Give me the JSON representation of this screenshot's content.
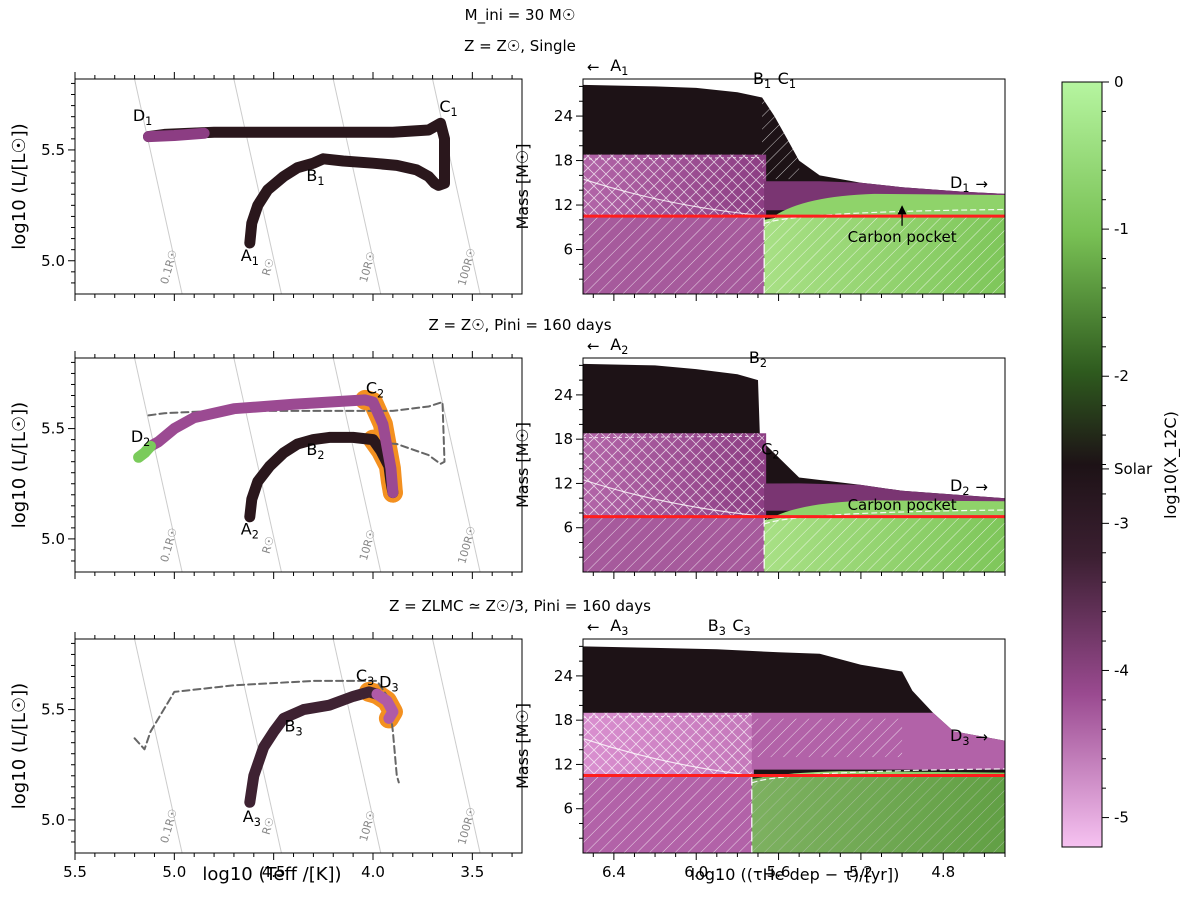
{
  "figure_title": "M_ini = 30 M☉",
  "colorbar": {
    "label": "log10(X_12C)",
    "range": [
      -5.2,
      0
    ],
    "ticks": [
      0,
      -1,
      -2,
      -3,
      -4,
      -5
    ],
    "tick_labels": [
      "0",
      "-1",
      "-2",
      "-3",
      "-4",
      "-5"
    ],
    "solar_value": -2.63,
    "solar_label": "Solar",
    "colors": {
      "high": "#b6f5a0",
      "mid_green": "#3e7a25",
      "dark": "#1d1216",
      "mid_purple": "#8c3d83",
      "low": "#f6c2f1"
    }
  },
  "chart_data": [
    {
      "type": "line",
      "name": "hrd-single",
      "title": "Z = Z☉, Single",
      "xlabel": "log10 (Teff /[K])",
      "ylabel": "log10 (L/[L☉])",
      "xlim": [
        5.5,
        3.25
      ],
      "ylim": [
        4.85,
        5.82
      ],
      "xticks": [
        5.5,
        5.0,
        4.5,
        4.0,
        3.5
      ],
      "xtick_labels": [
        "5.5",
        "5.0",
        "4.5",
        "4.0",
        "3.5"
      ],
      "yticks": [
        5.0,
        5.5
      ],
      "ytick_labels": [
        "5.0",
        "5.5"
      ],
      "radius_lines": [
        "0.1R☉",
        "R☉",
        "10R☉",
        "100R☉"
      ],
      "series": [
        {
          "name": "track",
          "color": "#2a171c",
          "x": [
            4.62,
            4.61,
            4.58,
            4.53,
            4.45,
            4.38,
            4.3,
            4.25,
            4.15,
            4.0,
            3.88,
            3.78,
            3.72,
            3.69,
            3.67,
            3.64,
            3.64,
            3.66,
            3.72,
            3.9,
            4.2,
            4.5,
            4.8,
            5.05,
            5.13
          ],
          "y": [
            5.08,
            5.17,
            5.25,
            5.32,
            5.38,
            5.42,
            5.44,
            5.46,
            5.45,
            5.44,
            5.43,
            5.41,
            5.38,
            5.35,
            5.34,
            5.35,
            5.55,
            5.62,
            5.59,
            5.58,
            5.58,
            5.58,
            5.58,
            5.57,
            5.56
          ]
        },
        {
          "name": "purple-end",
          "color": "#8c3d83",
          "x": [
            4.85,
            5.0,
            5.13
          ],
          "y": [
            5.575,
            5.565,
            5.56
          ]
        }
      ],
      "points": [
        {
          "label": "A",
          "sub": "1",
          "x": 4.62,
          "y": 5.0
        },
        {
          "label": "B",
          "sub": "1",
          "x": 4.29,
          "y": 5.36
        },
        {
          "label": "C",
          "sub": "1",
          "x": 3.62,
          "y": 5.67
        },
        {
          "label": "D",
          "sub": "1",
          "x": 5.16,
          "y": 5.63
        }
      ]
    },
    {
      "type": "line",
      "name": "hrd-binary-solar",
      "title": "Z = Z☉, Pini = 160 days",
      "xlabel": "log10 (Teff /[K])",
      "ylabel": "log10 (L/[L☉])",
      "xlim": [
        5.5,
        3.25
      ],
      "ylim": [
        4.85,
        5.82
      ],
      "xticks": [
        5.5,
        5.0,
        4.5,
        4.0,
        3.5
      ],
      "xtick_labels": [
        "5.5",
        "5.0",
        "4.5",
        "4.0",
        "3.5"
      ],
      "yticks": [
        5.0,
        5.5
      ],
      "ytick_labels": [
        "5.0",
        "5.5"
      ],
      "radius_lines": [
        "0.1R☉",
        "R☉",
        "10R☉",
        "100R☉"
      ],
      "series": [
        {
          "name": "single-reference",
          "color": "#666666",
          "dashed": true,
          "x": [
            4.62,
            4.58,
            4.45,
            4.3,
            4.15,
            3.88,
            3.72,
            3.66,
            3.64,
            3.65,
            3.72,
            3.9,
            4.2,
            4.5,
            4.8,
            5.05,
            5.13
          ],
          "y": [
            5.08,
            5.25,
            5.38,
            5.44,
            5.45,
            5.43,
            5.38,
            5.34,
            5.35,
            5.62,
            5.6,
            5.58,
            5.58,
            5.58,
            5.58,
            5.57,
            5.56
          ]
        },
        {
          "name": "track-dark",
          "color": "#2a171c",
          "x": [
            4.62,
            4.61,
            4.58,
            4.52,
            4.45,
            4.38,
            4.3,
            4.22,
            4.1,
            4.0,
            3.96,
            3.92,
            3.91,
            3.9
          ],
          "y": [
            5.1,
            5.18,
            5.26,
            5.33,
            5.39,
            5.43,
            5.45,
            5.46,
            5.46,
            5.45,
            5.4,
            5.33,
            5.26,
            5.21
          ]
        },
        {
          "name": "track-purple",
          "color": "#9b4a92",
          "x": [
            3.9,
            3.91,
            3.95,
            4.0,
            4.04,
            4.4,
            4.7,
            4.9,
            5.0,
            5.08,
            5.12
          ],
          "y": [
            5.21,
            5.32,
            5.52,
            5.62,
            5.63,
            5.61,
            5.59,
            5.55,
            5.5,
            5.44,
            5.42
          ]
        },
        {
          "name": "track-green",
          "color": "#7acb5b",
          "x": [
            5.12,
            5.15,
            5.18
          ],
          "y": [
            5.42,
            5.39,
            5.37
          ]
        }
      ],
      "points": [
        {
          "label": "A",
          "sub": "2",
          "x": 4.62,
          "y": 5.02
        },
        {
          "label": "B",
          "sub": "2",
          "x": 4.29,
          "y": 5.38
        },
        {
          "label": "C",
          "sub": "2",
          "x": 3.99,
          "y": 5.66
        },
        {
          "label": "D",
          "sub": "2",
          "x": 5.17,
          "y": 5.44
        }
      ]
    },
    {
      "type": "line",
      "name": "hrd-binary-lmc",
      "title": "Z = ZLMC ≃ Z☉/3, Pini = 160 days",
      "xlabel": "log10 (Teff /[K])",
      "ylabel": "log10 (L/[L☉])",
      "xlim": [
        5.5,
        3.25
      ],
      "ylim": [
        4.85,
        5.82
      ],
      "xticks": [
        5.5,
        5.0,
        4.5,
        4.0,
        3.5
      ],
      "xtick_labels": [
        "5.5",
        "5.0",
        "4.5",
        "4.0",
        "3.5"
      ],
      "yticks": [
        5.0,
        5.5
      ],
      "ytick_labels": [
        "5.0",
        "5.5"
      ],
      "radius_lines": [
        "0.1R☉",
        "R☉",
        "10R☉",
        "100R☉"
      ],
      "series": [
        {
          "name": "single-reference",
          "color": "#666666",
          "dashed": true,
          "x": [
            5.2,
            5.15,
            5.12,
            5.0,
            4.7,
            4.3,
            3.98,
            3.92,
            3.9,
            3.88,
            3.87
          ],
          "y": [
            5.37,
            5.32,
            5.4,
            5.58,
            5.61,
            5.63,
            5.63,
            5.55,
            5.4,
            5.2,
            5.17
          ]
        },
        {
          "name": "track-dark",
          "color": "#3e2232",
          "x": [
            4.62,
            4.6,
            4.55,
            4.5,
            4.45,
            4.35,
            4.22,
            4.1,
            4.02,
            3.98
          ],
          "y": [
            5.08,
            5.2,
            5.33,
            5.4,
            5.46,
            5.5,
            5.52,
            5.56,
            5.58,
            5.57
          ]
        },
        {
          "name": "track-purple",
          "color": "#b05aa7",
          "x": [
            3.98,
            3.93,
            3.9,
            3.92
          ],
          "y": [
            5.57,
            5.54,
            5.49,
            5.46
          ]
        }
      ],
      "points": [
        {
          "label": "A",
          "sub": "3",
          "x": 4.61,
          "y": 4.99
        },
        {
          "label": "B",
          "sub": "3",
          "x": 4.4,
          "y": 5.4
        },
        {
          "label": "C",
          "sub": "3",
          "x": 4.04,
          "y": 5.63
        },
        {
          "label": "D",
          "sub": "3",
          "x": 3.92,
          "y": 5.6
        }
      ]
    },
    {
      "type": "heatmap",
      "name": "kippenhahn-single",
      "xlabel": "log10 ((τHe dep − τ)/[yr])",
      "ylabel": "Mass [M☉]",
      "xlim": [
        6.55,
        4.5
      ],
      "ylim": [
        0,
        29
      ],
      "xticks": [
        6.4,
        6.0,
        5.6,
        5.2,
        4.8
      ],
      "xtick_labels": [
        "6.4",
        "6.0",
        "5.6",
        "5.2",
        "4.8"
      ],
      "yticks": [
        6,
        12,
        18,
        24
      ],
      "ytick_labels": [
        "6",
        "12",
        "18",
        "24"
      ],
      "red_line_mass": 10.5,
      "annotation": "Carbon pocket",
      "points": [
        {
          "label": "A",
          "sub": "1",
          "x": 6.5,
          "y": 31.2,
          "arrow": "left"
        },
        {
          "label": "B",
          "sub": "1",
          "x": 5.68,
          "y": 28.3
        },
        {
          "label": "C",
          "sub": "1",
          "x": 5.56,
          "y": 28.3
        },
        {
          "label": "D",
          "sub": "1",
          "x": 4.72,
          "y": 14.3,
          "arrow": "right"
        }
      ]
    },
    {
      "type": "heatmap",
      "name": "kippenhahn-binary-solar",
      "xlabel": "log10 ((τHe dep − τ)/[yr])",
      "ylabel": "Mass [M☉]",
      "xlim": [
        6.55,
        4.5
      ],
      "ylim": [
        0,
        29
      ],
      "xticks": [
        6.4,
        6.0,
        5.6,
        5.2,
        4.8
      ],
      "xtick_labels": [
        "6.4",
        "6.0",
        "5.6",
        "5.2",
        "4.8"
      ],
      "yticks": [
        6,
        12,
        18,
        24
      ],
      "ytick_labels": [
        "6",
        "12",
        "18",
        "24"
      ],
      "red_line_mass": 7.5,
      "annotation": "Carbon pocket",
      "points": [
        {
          "label": "A",
          "sub": "2",
          "x": 6.5,
          "y": 31.2,
          "arrow": "left"
        },
        {
          "label": "B",
          "sub": "2",
          "x": 5.7,
          "y": 28.3
        },
        {
          "label": "C",
          "sub": "2",
          "x": 5.64,
          "y": 15.9
        },
        {
          "label": "D",
          "sub": "2",
          "x": 4.72,
          "y": 11.0,
          "arrow": "right"
        }
      ]
    },
    {
      "type": "heatmap",
      "name": "kippenhahn-binary-lmc",
      "xlabel": "log10 ((τHe dep − τ)/[yr])",
      "ylabel": "Mass [M☉]",
      "xlim": [
        6.55,
        4.5
      ],
      "ylim": [
        0,
        29
      ],
      "xticks": [
        6.4,
        6.0,
        5.6,
        5.2,
        4.8
      ],
      "xtick_labels": [
        "6.4",
        "6.0",
        "5.6",
        "5.2",
        "4.8"
      ],
      "yticks": [
        6,
        12,
        18,
        24
      ],
      "ytick_labels": [
        "6",
        "12",
        "18",
        "24"
      ],
      "red_line_mass": 10.5,
      "points": [
        {
          "label": "A",
          "sub": "3",
          "x": 6.5,
          "y": 31.2,
          "arrow": "left"
        },
        {
          "label": "B",
          "sub": "3",
          "x": 5.9,
          "y": 31.2
        },
        {
          "label": "C",
          "sub": "3",
          "x": 5.78,
          "y": 31.2
        },
        {
          "label": "D",
          "sub": "3",
          "x": 4.72,
          "y": 15.2,
          "arrow": "right"
        }
      ]
    }
  ]
}
